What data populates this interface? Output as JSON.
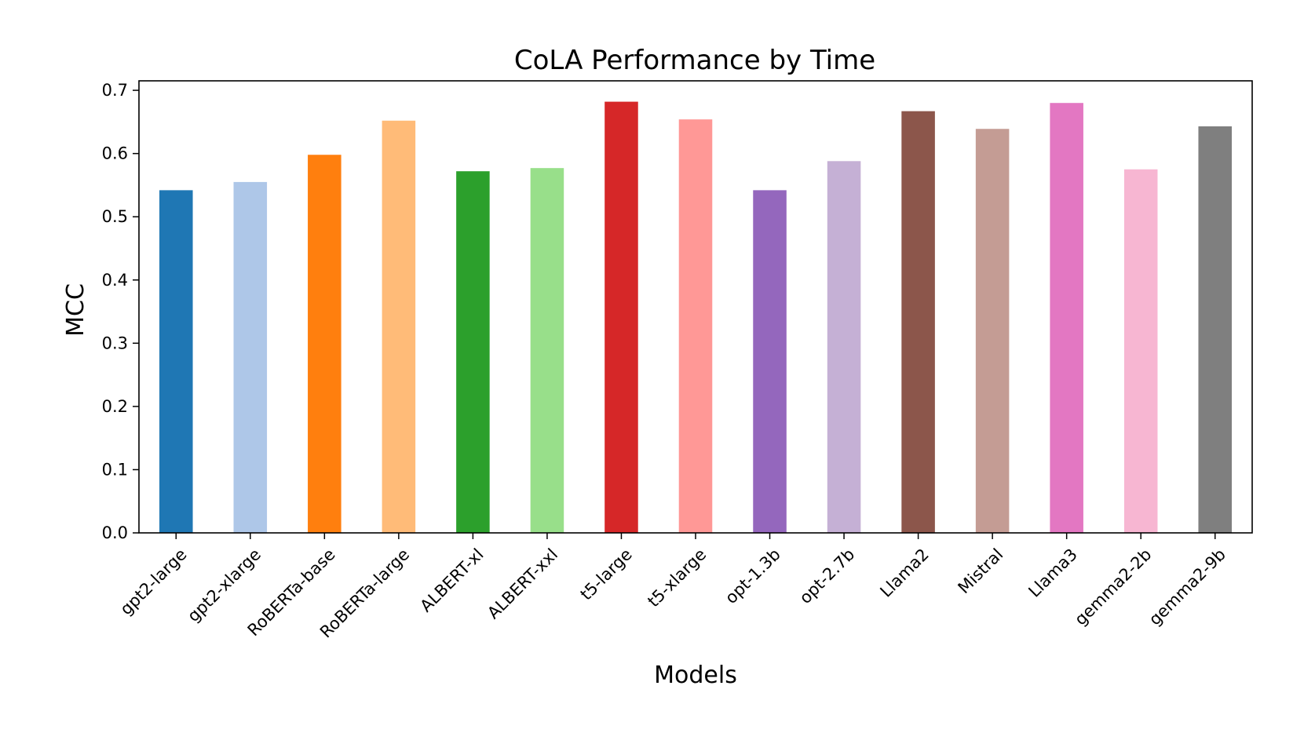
{
  "chart_data": {
    "type": "bar",
    "title": "CoLA Performance by Time",
    "xlabel": "Models",
    "ylabel": "MCC",
    "ylim": [
      0,
      0.715
    ],
    "yticks": [
      0.0,
      0.1,
      0.2,
      0.3,
      0.4,
      0.5,
      0.6,
      0.7
    ],
    "ytick_labels": [
      "0.0",
      "0.1",
      "0.2",
      "0.3",
      "0.4",
      "0.5",
      "0.6",
      "0.7"
    ],
    "grid": false,
    "categories": [
      "gpt2-large",
      "gpt2-xlarge",
      "RoBERTa-base",
      "RoBERTa-large",
      "ALBERT-xl",
      "ALBERT-xxl",
      "t5-large",
      "t5-xlarge",
      "opt-1.3b",
      "opt-2.7b",
      "Llama2",
      "Mistral",
      "Llama3",
      "gemma2-2b",
      "gemma2-9b"
    ],
    "values": [
      0.542,
      0.555,
      0.598,
      0.652,
      0.572,
      0.577,
      0.682,
      0.654,
      0.542,
      0.588,
      0.667,
      0.639,
      0.68,
      0.575,
      0.643
    ],
    "colors": [
      "#1f77b4",
      "#aec7e8",
      "#ff7f0e",
      "#ffbb78",
      "#2ca02c",
      "#98df8a",
      "#d62728",
      "#ff9896",
      "#9467bd",
      "#c5b0d5",
      "#8c564b",
      "#c49c94",
      "#e377c2",
      "#f7b6d2",
      "#7f7f7f"
    ]
  }
}
